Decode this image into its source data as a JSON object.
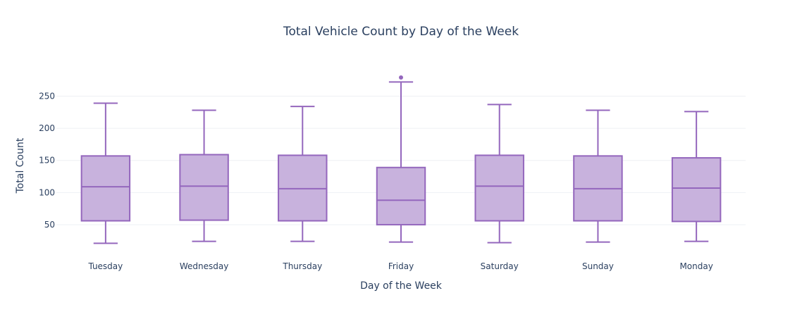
{
  "chart_data": {
    "type": "box",
    "title": "Total Vehicle Count by Day of the Week",
    "xlabel": "Day of the Week",
    "ylabel": "Total Count",
    "categories": [
      "Tuesday",
      "Wednesday",
      "Thursday",
      "Friday",
      "Saturday",
      "Sunday",
      "Monday"
    ],
    "yticks": [
      50,
      100,
      150,
      200,
      250
    ],
    "ylim": [
      5,
      290
    ],
    "grid": true,
    "legend": "none",
    "box_fill": "#c8b2dd",
    "box_stroke": "#9467bd",
    "boxes": [
      {
        "category": "Tuesday",
        "min": 21,
        "q1": 56,
        "median": 109,
        "q3": 157,
        "max": 239,
        "outliers": []
      },
      {
        "category": "Wednesday",
        "min": 24,
        "q1": 57,
        "median": 110,
        "q3": 159,
        "max": 228,
        "outliers": []
      },
      {
        "category": "Thursday",
        "min": 24,
        "q1": 56,
        "median": 106,
        "q3": 158,
        "max": 234,
        "outliers": []
      },
      {
        "category": "Friday",
        "min": 23,
        "q1": 50,
        "median": 88,
        "q3": 139,
        "max": 272,
        "outliers": [
          279
        ]
      },
      {
        "category": "Saturday",
        "min": 22,
        "q1": 56,
        "median": 110,
        "q3": 158,
        "max": 237,
        "outliers": []
      },
      {
        "category": "Sunday",
        "min": 23,
        "q1": 56,
        "median": 106,
        "q3": 157,
        "max": 228,
        "outliers": []
      },
      {
        "category": "Monday",
        "min": 24,
        "q1": 55,
        "median": 107,
        "q3": 154,
        "max": 226,
        "outliers": []
      }
    ]
  }
}
